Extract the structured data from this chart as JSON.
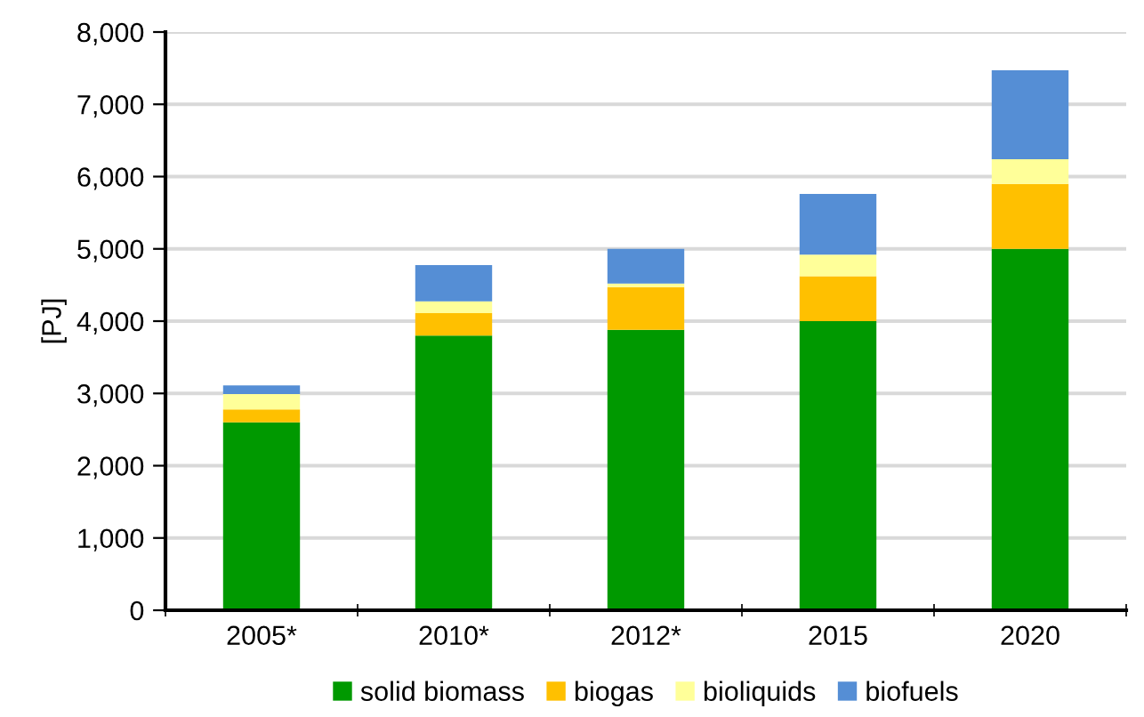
{
  "chart_data": {
    "type": "bar",
    "stacked": true,
    "ylabel": "[PJ]",
    "categories": [
      "2005*",
      "2010*",
      "2012*",
      "2015",
      "2020"
    ],
    "series": [
      {
        "name": "solid biomass",
        "color": "#009900",
        "values": [
          2600,
          3800,
          3880,
          4000,
          5000
        ]
      },
      {
        "name": "biogas",
        "color": "#ffc000",
        "values": [
          180,
          310,
          590,
          620,
          900
        ]
      },
      {
        "name": "bioliquids",
        "color": "#ffff99",
        "values": [
          210,
          165,
          50,
          300,
          340
        ]
      },
      {
        "name": "biofuels",
        "color": "#558ed5",
        "values": [
          120,
          500,
          480,
          840,
          1230
        ]
      }
    ],
    "ylim": [
      0,
      8000
    ],
    "yticks": [
      {
        "value": 0,
        "label": "0"
      },
      {
        "value": 1000,
        "label": "1,000"
      },
      {
        "value": 2000,
        "label": "2,000"
      },
      {
        "value": 3000,
        "label": "3,000"
      },
      {
        "value": 4000,
        "label": "4,000"
      },
      {
        "value": 5000,
        "label": "5,000"
      },
      {
        "value": 6000,
        "label": "6,000"
      },
      {
        "value": 7000,
        "label": "7,000"
      },
      {
        "value": 8000,
        "label": "8,000"
      }
    ],
    "grid": "y",
    "legend": "bottom"
  }
}
